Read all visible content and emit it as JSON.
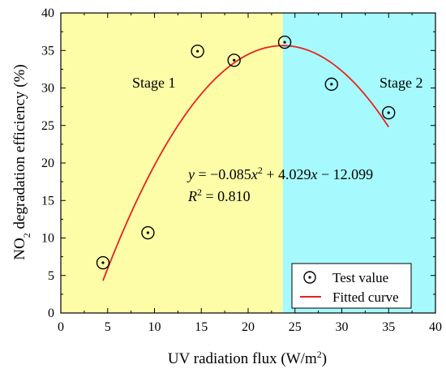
{
  "chart_data": {
    "type": "scatter",
    "xlabel_parts": [
      "UV radiation flux (W/m",
      "2",
      ")"
    ],
    "ylabel_parts": [
      "NO",
      "2",
      " degradation efficiency (%)"
    ],
    "xlim": [
      0,
      40
    ],
    "ylim": [
      0,
      40
    ],
    "xticks": [
      "0",
      "5",
      "10",
      "15",
      "20",
      "25",
      "30",
      "35",
      "40"
    ],
    "yticks": [
      "0",
      "5",
      "10",
      "15",
      "20",
      "25",
      "30",
      "35",
      "40"
    ],
    "regions": [
      {
        "name": "Stage 1",
        "x_range": [
          0,
          23.7
        ],
        "color": "#fdfda8"
      },
      {
        "name": "Stage 2",
        "x_range": [
          23.7,
          40
        ],
        "color": "#a6fafd"
      }
    ],
    "series": [
      {
        "name": "Test value",
        "type": "scatter",
        "x": [
          4.5,
          9.3,
          14.6,
          18.5,
          23.9,
          28.9,
          35.0
        ],
        "y": [
          6.7,
          10.7,
          34.9,
          33.7,
          36.1,
          30.5,
          26.7
        ]
      },
      {
        "name": "Fitted curve",
        "type": "line",
        "color": "#e8231f",
        "equation": {
          "a": -0.085,
          "b": 4.029,
          "c": -12.099
        },
        "x_range": [
          4.5,
          35.0
        ]
      }
    ],
    "equation_text": {
      "y_sym": "y",
      "eq_a": " = −0.085",
      "x_sym1": "x",
      "sup2": "2",
      "eq_b": " + 4.029",
      "x_sym2": "x",
      "eq_c": " − 12.099"
    },
    "r2_text": {
      "r_sym": "R",
      "sup2": "2",
      "value": " = 0.810"
    },
    "stage_labels": [
      "Stage 1",
      "Stage 2"
    ],
    "legend": {
      "position": "bottom-right",
      "items": [
        "Test value",
        "Fitted curve"
      ]
    }
  }
}
